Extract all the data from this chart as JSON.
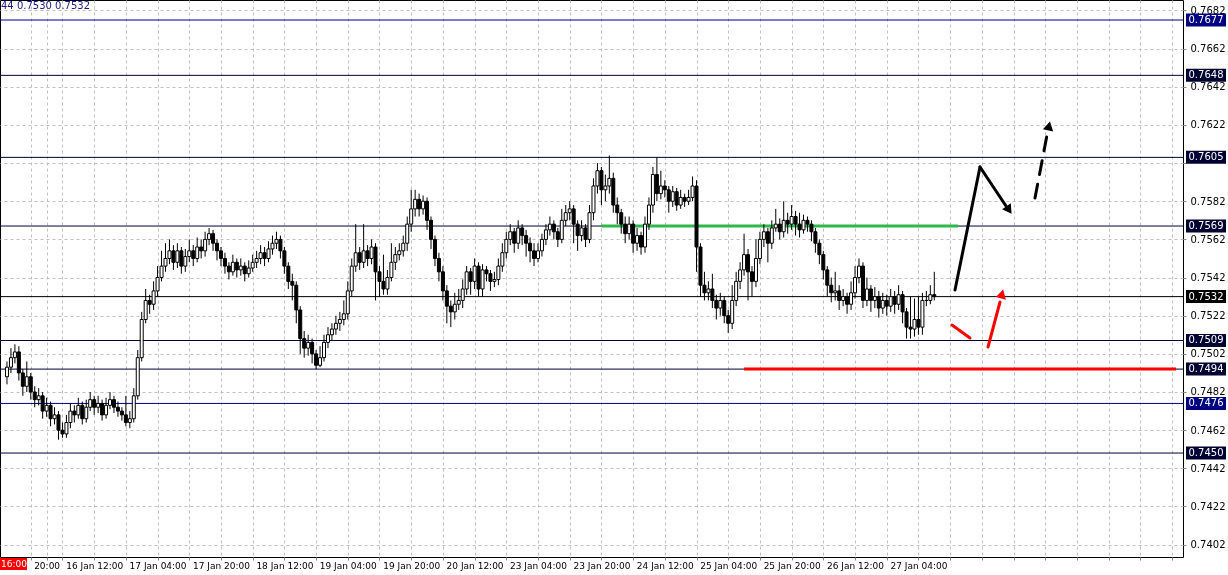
{
  "chart_data": {
    "type": "candlestick",
    "categories": [
      null,
      null,
      null,
      null,
      null,
      null,
      null,
      null,
      null,
      null,
      "20:00",
      null,
      null,
      null,
      null,
      null,
      null,
      null,
      null,
      null,
      null,
      null,
      "16 Jan 12:00",
      null,
      null,
      null,
      null,
      null,
      null,
      null,
      null,
      null,
      null,
      null,
      null,
      null,
      null,
      null,
      "17 Jan 04:00",
      null,
      null,
      null,
      null,
      null,
      null,
      null,
      null,
      null,
      null,
      null,
      null,
      null,
      null,
      null,
      "17 Jan 20:00",
      null,
      null,
      null,
      null,
      null,
      null,
      null,
      null,
      null,
      null,
      null,
      null,
      null,
      null,
      null,
      "18 Jan 12:00",
      null,
      null,
      null,
      null,
      null,
      null,
      null,
      null,
      null,
      null,
      null,
      null,
      null,
      null,
      null,
      "19 Jan 04:00",
      null,
      null,
      null,
      null,
      null,
      null,
      null,
      null,
      null,
      null,
      null,
      null,
      null,
      null,
      null,
      "19 Jan 20:00",
      null,
      null,
      null,
      null,
      null,
      null,
      null,
      null,
      null,
      null,
      null,
      null,
      null,
      null,
      null,
      "20 Jan 12:00",
      null,
      null,
      null,
      null,
      null,
      null,
      null,
      null,
      null,
      null,
      null,
      null,
      null,
      null,
      null,
      "23 Jan 04:00",
      null,
      null,
      null,
      null,
      null,
      null,
      null,
      null,
      null,
      null,
      null,
      null,
      null,
      null,
      null,
      "23 Jan 20:00",
      null,
      null,
      null,
      null,
      null,
      null,
      null,
      null,
      null,
      null,
      null,
      null,
      null,
      null,
      null,
      "24 Jan 12:00",
      null,
      null,
      null,
      null,
      null,
      null,
      null,
      null,
      null,
      null,
      null,
      null,
      null,
      null,
      null,
      "25 Jan 04:00",
      null,
      null,
      null,
      null,
      null,
      null,
      null,
      null,
      null,
      null,
      null,
      null,
      null,
      null,
      null,
      "25 Jan 20:00",
      null,
      null,
      null,
      null,
      null,
      null,
      null,
      null,
      null,
      null,
      null,
      null,
      null,
      null,
      null,
      "26 Jan 12:00",
      null,
      null,
      null,
      null,
      null,
      null,
      null,
      null,
      null,
      null,
      null,
      null,
      null,
      null,
      null,
      "27 Jan 04:00",
      null,
      null,
      null,
      null,
      null,
      null,
      null,
      null,
      null,
      null,
      null,
      null,
      null,
      null,
      null,
      null,
      null,
      null,
      null,
      null,
      null,
      null,
      null,
      null,
      null,
      null,
      null,
      null,
      null,
      null,
      null,
      null,
      null,
      null,
      null,
      null,
      null,
      null,
      null,
      null,
      null,
      null,
      null,
      null,
      null,
      null,
      null,
      null,
      null,
      null,
      null,
      null,
      null,
      null,
      null,
      null,
      null,
      null,
      null,
      null,
      null,
      null,
      null,
      null,
      null
    ],
    "color": "#000000",
    "ohlc": [
      [
        0.749,
        0.7498,
        0.7486,
        0.7495
      ],
      [
        0.7495,
        0.7505,
        0.7492,
        0.75
      ],
      [
        0.75,
        0.7507,
        0.7497,
        0.7503
      ],
      [
        0.7503,
        0.7506,
        0.7488,
        0.7492
      ],
      [
        0.7492,
        0.7494,
        0.748,
        0.7485
      ],
      [
        0.7485,
        0.7498,
        0.7482,
        0.749
      ],
      [
        0.749,
        0.7492,
        0.7478,
        0.7482
      ],
      [
        0.7482,
        0.7485,
        0.7474,
        0.7478
      ],
      [
        0.7478,
        0.7484,
        0.7475,
        0.748
      ],
      [
        0.748,
        0.7482,
        0.7468,
        0.7472
      ],
      [
        0.7472,
        0.7479,
        0.7469,
        0.7475
      ],
      [
        0.7475,
        0.7477,
        0.7464,
        0.7468
      ],
      [
        0.7468,
        0.7474,
        0.7465,
        0.747
      ],
      [
        0.747,
        0.7472,
        0.7457,
        0.7462
      ],
      [
        0.7462,
        0.7466,
        0.7458,
        0.746
      ],
      [
        0.746,
        0.747,
        0.7458,
        0.7466
      ],
      [
        0.7466,
        0.7476,
        0.7463,
        0.7472
      ],
      [
        0.7472,
        0.7475,
        0.7466,
        0.747
      ],
      [
        0.747,
        0.7479,
        0.7468,
        0.7475
      ],
      [
        0.7475,
        0.7477,
        0.7465,
        0.7468
      ],
      [
        0.7468,
        0.7478,
        0.7466,
        0.7474
      ],
      [
        0.7474,
        0.7482,
        0.7472,
        0.7478
      ],
      [
        0.7478,
        0.748,
        0.747,
        0.7474
      ],
      [
        0.7474,
        0.748,
        0.7471,
        0.7476
      ],
      [
        0.7476,
        0.7478,
        0.7467,
        0.747
      ],
      [
        0.747,
        0.7479,
        0.7468,
        0.7475
      ],
      [
        0.7475,
        0.7482,
        0.7473,
        0.7478
      ],
      [
        0.7478,
        0.748,
        0.7471,
        0.7474
      ],
      [
        0.7474,
        0.7477,
        0.7469,
        0.7472
      ],
      [
        0.7472,
        0.7474,
        0.7467,
        0.747
      ],
      [
        0.747,
        0.748,
        0.7464,
        0.7466
      ],
      [
        0.7466,
        0.7472,
        0.7463,
        0.7468
      ],
      [
        0.7468,
        0.7484,
        0.7466,
        0.748
      ],
      [
        0.748,
        0.7504,
        0.7478,
        0.75
      ],
      [
        0.75,
        0.7524,
        0.7498,
        0.752
      ],
      [
        0.752,
        0.7536,
        0.7518,
        0.753
      ],
      [
        0.753,
        0.7533,
        0.7523,
        0.7528
      ],
      [
        0.7528,
        0.754,
        0.7525,
        0.7535
      ],
      [
        0.7535,
        0.7548,
        0.7532,
        0.7542
      ],
      [
        0.7542,
        0.7556,
        0.754,
        0.7548
      ],
      [
        0.7548,
        0.756,
        0.7545,
        0.7552
      ],
      [
        0.7552,
        0.7562,
        0.7549,
        0.7556
      ],
      [
        0.7556,
        0.7559,
        0.7546,
        0.755
      ],
      [
        0.755,
        0.756,
        0.7547,
        0.7556
      ],
      [
        0.7556,
        0.7558,
        0.7544,
        0.7548
      ],
      [
        0.7548,
        0.7557,
        0.7545,
        0.7553
      ],
      [
        0.7553,
        0.7562,
        0.755,
        0.7556
      ],
      [
        0.7556,
        0.7559,
        0.7548,
        0.7552
      ],
      [
        0.7552,
        0.7563,
        0.755,
        0.7558
      ],
      [
        0.7558,
        0.7562,
        0.7552,
        0.7556
      ],
      [
        0.7556,
        0.7566,
        0.7553,
        0.7562
      ],
      [
        0.7562,
        0.7568,
        0.7559,
        0.7565
      ],
      [
        0.7565,
        0.7567,
        0.7556,
        0.756
      ],
      [
        0.756,
        0.7562,
        0.7551,
        0.7556
      ],
      [
        0.7556,
        0.7558,
        0.7548,
        0.7552
      ],
      [
        0.7552,
        0.7555,
        0.7544,
        0.7548
      ],
      [
        0.7548,
        0.755,
        0.7541,
        0.7545
      ],
      [
        0.7545,
        0.7554,
        0.7543,
        0.755
      ],
      [
        0.755,
        0.7552,
        0.7542,
        0.7546
      ],
      [
        0.7546,
        0.7552,
        0.7543,
        0.7548
      ],
      [
        0.7548,
        0.755,
        0.754,
        0.7544
      ],
      [
        0.7544,
        0.7551,
        0.7542,
        0.7547
      ],
      [
        0.7547,
        0.7554,
        0.7545,
        0.755
      ],
      [
        0.755,
        0.7556,
        0.7547,
        0.7552
      ],
      [
        0.7552,
        0.7559,
        0.7549,
        0.7555
      ],
      [
        0.7555,
        0.7558,
        0.7548,
        0.7552
      ],
      [
        0.7552,
        0.7561,
        0.755,
        0.7557
      ],
      [
        0.7557,
        0.7564,
        0.7554,
        0.756
      ],
      [
        0.756,
        0.7566,
        0.7557,
        0.7562
      ],
      [
        0.7562,
        0.7564,
        0.7552,
        0.7556
      ],
      [
        0.7556,
        0.7558,
        0.7544,
        0.7548
      ],
      [
        0.7548,
        0.755,
        0.7536,
        0.754
      ],
      [
        0.754,
        0.7544,
        0.753,
        0.7538
      ],
      [
        0.7538,
        0.754,
        0.7518,
        0.7525
      ],
      [
        0.7525,
        0.7527,
        0.7502,
        0.751
      ],
      [
        0.751,
        0.7514,
        0.75,
        0.7505
      ],
      [
        0.7505,
        0.7512,
        0.7501,
        0.7508
      ],
      [
        0.7508,
        0.751,
        0.7497,
        0.7502
      ],
      [
        0.7502,
        0.7504,
        0.7494,
        0.7496
      ],
      [
        0.7496,
        0.7506,
        0.7495,
        0.75
      ],
      [
        0.75,
        0.7512,
        0.7498,
        0.7508
      ],
      [
        0.7508,
        0.7516,
        0.7505,
        0.7512
      ],
      [
        0.7512,
        0.7518,
        0.7509,
        0.7515
      ],
      [
        0.7515,
        0.7522,
        0.7512,
        0.7518
      ],
      [
        0.7518,
        0.7524,
        0.7514,
        0.752
      ],
      [
        0.752,
        0.753,
        0.7517,
        0.7523
      ],
      [
        0.7523,
        0.754,
        0.752,
        0.7535
      ],
      [
        0.7535,
        0.7552,
        0.7532,
        0.7548
      ],
      [
        0.7548,
        0.757,
        0.7545,
        0.7555
      ],
      [
        0.7555,
        0.7558,
        0.7546,
        0.755
      ],
      [
        0.755,
        0.757,
        0.7547,
        0.7556
      ],
      [
        0.7556,
        0.7559,
        0.7548,
        0.7552
      ],
      [
        0.7552,
        0.7562,
        0.7549,
        0.7558
      ],
      [
        0.7558,
        0.756,
        0.753,
        0.7545
      ],
      [
        0.7545,
        0.7548,
        0.7532,
        0.754
      ],
      [
        0.754,
        0.7554,
        0.7533,
        0.7536
      ],
      [
        0.7536,
        0.7546,
        0.7533,
        0.7542
      ],
      [
        0.7542,
        0.756,
        0.754,
        0.755
      ],
      [
        0.755,
        0.7558,
        0.7546,
        0.7554
      ],
      [
        0.7554,
        0.756,
        0.7551,
        0.7556
      ],
      [
        0.7556,
        0.7564,
        0.7553,
        0.756
      ],
      [
        0.756,
        0.7574,
        0.7556,
        0.757
      ],
      [
        0.757,
        0.7588,
        0.7566,
        0.7578
      ],
      [
        0.7578,
        0.7588,
        0.7574,
        0.7583
      ],
      [
        0.7583,
        0.7586,
        0.7574,
        0.7578
      ],
      [
        0.7578,
        0.7585,
        0.7575,
        0.7582
      ],
      [
        0.7582,
        0.7584,
        0.7567,
        0.7572
      ],
      [
        0.7572,
        0.7574,
        0.7557,
        0.7562
      ],
      [
        0.7562,
        0.7564,
        0.7548,
        0.7552
      ],
      [
        0.7552,
        0.7555,
        0.754,
        0.7545
      ],
      [
        0.7545,
        0.7548,
        0.753,
        0.7535
      ],
      [
        0.7535,
        0.7538,
        0.7518,
        0.7527
      ],
      [
        0.7527,
        0.753,
        0.7516,
        0.7524
      ],
      [
        0.7524,
        0.7534,
        0.752,
        0.7528
      ],
      [
        0.7528,
        0.7536,
        0.7525,
        0.753
      ],
      [
        0.753,
        0.7541,
        0.7526,
        0.7536
      ],
      [
        0.7536,
        0.7548,
        0.7533,
        0.7545
      ],
      [
        0.7545,
        0.7547,
        0.7533,
        0.754
      ],
      [
        0.754,
        0.7552,
        0.7536,
        0.7548
      ],
      [
        0.7548,
        0.755,
        0.7532,
        0.7536
      ],
      [
        0.7536,
        0.7549,
        0.7532,
        0.7546
      ],
      [
        0.7546,
        0.7548,
        0.754,
        0.7544
      ],
      [
        0.7544,
        0.7546,
        0.7535,
        0.754
      ],
      [
        0.754,
        0.7545,
        0.7537,
        0.7541
      ],
      [
        0.7541,
        0.7552,
        0.7538,
        0.7548
      ],
      [
        0.7548,
        0.756,
        0.7545,
        0.7555
      ],
      [
        0.7555,
        0.7566,
        0.7552,
        0.7562
      ],
      [
        0.7562,
        0.757,
        0.7559,
        0.7566
      ],
      [
        0.7566,
        0.7568,
        0.7555,
        0.756
      ],
      [
        0.756,
        0.7572,
        0.7557,
        0.7568
      ],
      [
        0.7568,
        0.757,
        0.7559,
        0.7564
      ],
      [
        0.7564,
        0.7567,
        0.7553,
        0.756
      ],
      [
        0.756,
        0.7563,
        0.755,
        0.7556
      ],
      [
        0.7556,
        0.756,
        0.7548,
        0.7552
      ],
      [
        0.7552,
        0.756,
        0.755,
        0.7556
      ],
      [
        0.7556,
        0.7565,
        0.7553,
        0.7562
      ],
      [
        0.7562,
        0.757,
        0.7559,
        0.7567
      ],
      [
        0.7567,
        0.7574,
        0.7564,
        0.757
      ],
      [
        0.757,
        0.7572,
        0.7562,
        0.7566
      ],
      [
        0.7566,
        0.7568,
        0.7558,
        0.7562
      ],
      [
        0.7562,
        0.7578,
        0.756,
        0.7572
      ],
      [
        0.7572,
        0.758,
        0.7569,
        0.7576
      ],
      [
        0.7576,
        0.7582,
        0.7572,
        0.7578
      ],
      [
        0.7578,
        0.758,
        0.756,
        0.757
      ],
      [
        0.757,
        0.7572,
        0.7556,
        0.7564
      ],
      [
        0.7564,
        0.7572,
        0.7561,
        0.7568
      ],
      [
        0.7568,
        0.757,
        0.7558,
        0.7562
      ],
      [
        0.7562,
        0.758,
        0.756,
        0.7576
      ],
      [
        0.7576,
        0.7594,
        0.7572,
        0.759
      ],
      [
        0.759,
        0.7602,
        0.7586,
        0.7598
      ],
      [
        0.7598,
        0.76,
        0.758,
        0.7588
      ],
      [
        0.7588,
        0.7596,
        0.7582,
        0.759
      ],
      [
        0.759,
        0.7606,
        0.7586,
        0.7594
      ],
      [
        0.7594,
        0.7597,
        0.7576,
        0.758
      ],
      [
        0.758,
        0.7584,
        0.757,
        0.7576
      ],
      [
        0.7576,
        0.7578,
        0.7565,
        0.757
      ],
      [
        0.757,
        0.7574,
        0.756,
        0.7565
      ],
      [
        0.7565,
        0.7574,
        0.7562,
        0.757
      ],
      [
        0.757,
        0.7572,
        0.7555,
        0.756
      ],
      [
        0.756,
        0.7568,
        0.7556,
        0.7564
      ],
      [
        0.7564,
        0.7566,
        0.7554,
        0.7558
      ],
      [
        0.7558,
        0.7574,
        0.7555,
        0.757
      ],
      [
        0.757,
        0.7584,
        0.7567,
        0.758
      ],
      [
        0.758,
        0.76,
        0.7576,
        0.7596
      ],
      [
        0.7596,
        0.7605,
        0.7582,
        0.7586
      ],
      [
        0.7586,
        0.7598,
        0.7583,
        0.759
      ],
      [
        0.759,
        0.7593,
        0.7584,
        0.7588
      ],
      [
        0.7588,
        0.759,
        0.7576,
        0.7582
      ],
      [
        0.7582,
        0.759,
        0.7579,
        0.7587
      ],
      [
        0.7587,
        0.7589,
        0.7577,
        0.758
      ],
      [
        0.758,
        0.7588,
        0.7578,
        0.7584
      ],
      [
        0.7584,
        0.7586,
        0.7579,
        0.7582
      ],
      [
        0.7582,
        0.7588,
        0.758,
        0.7584
      ],
      [
        0.7584,
        0.7595,
        0.7582,
        0.759
      ],
      [
        0.759,
        0.7593,
        0.7545,
        0.7558
      ],
      [
        0.7558,
        0.756,
        0.7532,
        0.7538
      ],
      [
        0.7538,
        0.7545,
        0.753,
        0.7534
      ],
      [
        0.7534,
        0.754,
        0.753,
        0.7536
      ],
      [
        0.7536,
        0.7544,
        0.7526,
        0.753
      ],
      [
        0.753,
        0.7533,
        0.752,
        0.7526
      ],
      [
        0.7526,
        0.7534,
        0.7522,
        0.753
      ],
      [
        0.753,
        0.7532,
        0.7518,
        0.7522
      ],
      [
        0.7522,
        0.7525,
        0.7513,
        0.7518
      ],
      [
        0.7518,
        0.7538,
        0.7515,
        0.753
      ],
      [
        0.753,
        0.7545,
        0.7527,
        0.754
      ],
      [
        0.754,
        0.755,
        0.7536,
        0.7546
      ],
      [
        0.7546,
        0.7565,
        0.7543,
        0.7554
      ],
      [
        0.7554,
        0.7557,
        0.753,
        0.7545
      ],
      [
        0.7545,
        0.7548,
        0.7532,
        0.754
      ],
      [
        0.754,
        0.7562,
        0.7537,
        0.7552
      ],
      [
        0.7552,
        0.7566,
        0.7549,
        0.7562
      ],
      [
        0.7562,
        0.757,
        0.7558,
        0.7566
      ],
      [
        0.7566,
        0.7568,
        0.755,
        0.756
      ],
      [
        0.756,
        0.7572,
        0.7557,
        0.7568
      ],
      [
        0.7568,
        0.7578,
        0.7566,
        0.757
      ],
      [
        0.757,
        0.7573,
        0.7562,
        0.7566
      ],
      [
        0.7566,
        0.7582,
        0.7563,
        0.7572
      ],
      [
        0.7572,
        0.7576,
        0.7565,
        0.757
      ],
      [
        0.757,
        0.758,
        0.7567,
        0.7574
      ],
      [
        0.7574,
        0.7577,
        0.7564,
        0.757
      ],
      [
        0.757,
        0.7576,
        0.7563,
        0.7567
      ],
      [
        0.7567,
        0.7575,
        0.7565,
        0.7572
      ],
      [
        0.7572,
        0.7574,
        0.7566,
        0.757
      ],
      [
        0.757,
        0.7572,
        0.7561,
        0.7566
      ],
      [
        0.7566,
        0.7568,
        0.7555,
        0.756
      ],
      [
        0.756,
        0.7562,
        0.7549,
        0.7554
      ],
      [
        0.7554,
        0.7556,
        0.7541,
        0.7546
      ],
      [
        0.7546,
        0.7548,
        0.7532,
        0.7538
      ],
      [
        0.7538,
        0.7542,
        0.7529,
        0.7534
      ],
      [
        0.7534,
        0.7545,
        0.753,
        0.7535
      ],
      [
        0.7535,
        0.7538,
        0.7525,
        0.753
      ],
      [
        0.753,
        0.7536,
        0.7527,
        0.7532
      ],
      [
        0.7532,
        0.7534,
        0.7523,
        0.7528
      ],
      [
        0.7528,
        0.754,
        0.7525,
        0.7534
      ],
      [
        0.7534,
        0.7548,
        0.7531,
        0.7542
      ],
      [
        0.7542,
        0.7552,
        0.7539,
        0.7548
      ],
      [
        0.7548,
        0.755,
        0.7526,
        0.753
      ],
      [
        0.753,
        0.7542,
        0.7527,
        0.7536
      ],
      [
        0.7536,
        0.7538,
        0.7524,
        0.753
      ],
      [
        0.753,
        0.7537,
        0.7526,
        0.7532
      ],
      [
        0.7532,
        0.7535,
        0.7521,
        0.7526
      ],
      [
        0.7526,
        0.7534,
        0.7523,
        0.753
      ],
      [
        0.753,
        0.7533,
        0.7522,
        0.7527
      ],
      [
        0.7527,
        0.7536,
        0.7524,
        0.7532
      ],
      [
        0.7532,
        0.7535,
        0.7523,
        0.7528
      ],
      [
        0.7528,
        0.7538,
        0.7525,
        0.7533
      ],
      [
        0.7533,
        0.7535,
        0.7518,
        0.7524
      ],
      [
        0.7524,
        0.7526,
        0.751,
        0.7516
      ],
      [
        0.7516,
        0.7532,
        0.751,
        0.7515
      ],
      [
        0.7515,
        0.7531,
        0.7511,
        0.752
      ],
      [
        0.752,
        0.7532,
        0.7512,
        0.7516
      ],
      [
        0.7516,
        0.7534,
        0.7512,
        0.753
      ],
      [
        0.753,
        0.7535,
        0.7527,
        0.753
      ],
      [
        0.753,
        0.7538,
        0.7528,
        0.7533
      ],
      [
        0.7533,
        0.7545,
        0.753,
        0.7532
      ],
      null,
      null,
      null,
      null,
      null,
      null,
      null,
      null,
      null,
      null,
      null,
      null,
      null,
      null,
      null,
      null,
      null,
      null,
      null,
      null,
      null,
      null,
      null,
      null,
      null,
      null,
      null,
      null,
      null,
      null,
      null,
      null,
      null,
      null,
      null,
      null,
      null,
      null,
      null,
      null,
      null,
      null,
      null,
      null,
      null,
      null,
      null,
      null,
      null,
      null,
      null,
      null,
      null,
      null,
      null,
      null,
      null,
      null,
      null,
      null,
      null
    ],
    "series": [
      {
        "type": "line",
        "color": "#2eb84b",
        "values": [
          null,
          null,
          null,
          null,
          null,
          null,
          null,
          null,
          null,
          null,
          null,
          null,
          null,
          null,
          null,
          null,
          null,
          null,
          null,
          null,
          null,
          null,
          null,
          null,
          null,
          null,
          null,
          null,
          null,
          null,
          null,
          null,
          null,
          null,
          null,
          null,
          null,
          null,
          null,
          null,
          null,
          null,
          null,
          null,
          null,
          null,
          null,
          null,
          null,
          null,
          null,
          null,
          null,
          null,
          null,
          null,
          null,
          null,
          null,
          null,
          null,
          null,
          null,
          null,
          null,
          null,
          null,
          null,
          null,
          null,
          null,
          null,
          null,
          null,
          null,
          null,
          null,
          null,
          null,
          null,
          null,
          null,
          null,
          null,
          null,
          null,
          null,
          null,
          null,
          null,
          null,
          null,
          null,
          null,
          null,
          null,
          null,
          null,
          null,
          null,
          null,
          null,
          null,
          null,
          null,
          null,
          null,
          null,
          null,
          null,
          null,
          null,
          null,
          null,
          null,
          null,
          null,
          null,
          null,
          null,
          null,
          null,
          null,
          null,
          null,
          null,
          null,
          null,
          null,
          null,
          null,
          null,
          null,
          null,
          null,
          null,
          null,
          null,
          null,
          null,
          null,
          null,
          null,
          null,
          null,
          null,
          null,
          null,
          null,
          null,
          0.7569,
          0.7569,
          0.7569,
          0.7569,
          0.7569,
          0.7569,
          0.7569,
          0.7569,
          0.7569,
          0.7569,
          0.7569,
          0.7569,
          0.7569,
          0.7569,
          0.7569,
          0.7569,
          0.7569,
          0.7569,
          0.7569,
          0.7569,
          0.7569,
          0.7569,
          0.7569,
          0.7569,
          0.7569,
          0.7569,
          0.7569,
          0.7569,
          0.7569,
          0.7569,
          0.7569,
          0.7569,
          0.7569,
          0.7569,
          0.7569,
          0.7569,
          0.7569,
          0.7569,
          0.7569,
          0.7569,
          0.7569,
          0.7569,
          0.7569,
          0.7569,
          0.7569,
          0.7569,
          0.7569,
          0.7569,
          0.7569,
          0.7569,
          0.7569,
          0.7569,
          0.7569,
          0.7569,
          0.7569,
          0.7569,
          0.7569,
          0.7569,
          0.7569,
          0.7569,
          0.7569,
          0.7569,
          0.7569,
          0.7569,
          0.7569,
          0.7569,
          0.7569,
          0.7569,
          0.7569,
          0.7569,
          0.7569,
          0.7569,
          0.7569,
          0.7569,
          0.7569,
          0.7569,
          0.7569,
          0.7569,
          0.7569,
          0.7569,
          0.7569,
          0.7569,
          0.7569,
          0.7569,
          0.7569,
          0.7569,
          0.7569,
          0.7569,
          0.7569,
          0.7569,
          0.7569,
          null,
          null,
          null,
          null,
          null,
          null,
          null,
          null,
          null,
          null,
          null,
          null,
          null,
          null,
          null,
          null,
          null,
          null,
          null,
          null,
          null,
          null,
          null,
          null,
          null,
          null,
          null,
          null,
          null,
          null,
          null,
          null,
          null,
          null,
          null,
          null,
          null,
          null,
          null,
          null,
          null,
          null,
          null,
          null,
          null,
          null,
          null,
          null,
          null,
          null,
          null,
          null,
          null,
          null,
          null
        ]
      },
      {
        "type": "line",
        "color": "#ff0000",
        "values": [
          null,
          null,
          null,
          null,
          null,
          null,
          null,
          null,
          null,
          null,
          null,
          null,
          null,
          null,
          null,
          null,
          null,
          null,
          null,
          null,
          null,
          null,
          null,
          null,
          null,
          null,
          null,
          null,
          null,
          null,
          null,
          null,
          null,
          null,
          null,
          null,
          null,
          null,
          null,
          null,
          null,
          null,
          null,
          null,
          null,
          null,
          null,
          null,
          null,
          null,
          null,
          null,
          null,
          null,
          null,
          null,
          null,
          null,
          null,
          null,
          null,
          null,
          null,
          null,
          null,
          null,
          null,
          null,
          null,
          null,
          null,
          null,
          null,
          null,
          null,
          null,
          null,
          null,
          null,
          null,
          null,
          null,
          null,
          null,
          null,
          null,
          null,
          null,
          null,
          null,
          null,
          null,
          null,
          null,
          null,
          null,
          null,
          null,
          null,
          null,
          null,
          null,
          null,
          null,
          null,
          null,
          null,
          null,
          null,
          null,
          null,
          null,
          null,
          null,
          null,
          null,
          null,
          null,
          null,
          null,
          null,
          null,
          null,
          null,
          null,
          null,
          null,
          null,
          null,
          null,
          null,
          null,
          null,
          null,
          null,
          null,
          null,
          null,
          null,
          null,
          null,
          null,
          null,
          null,
          null,
          null,
          null,
          null,
          null,
          null,
          null,
          null,
          null,
          null,
          null,
          null,
          null,
          null,
          null,
          null,
          null,
          null,
          null,
          null,
          null,
          null,
          null,
          null,
          null,
          null,
          null,
          null,
          null,
          null,
          null,
          null,
          null,
          null,
          null,
          null,
          null,
          null,
          null,
          null,
          null,
          null,
          0.7494,
          0.7494,
          0.7494,
          0.7494,
          0.7494,
          0.7494,
          0.7494,
          0.7494,
          0.7494,
          0.7494,
          0.7494,
          0.7494,
          0.7494,
          0.7494,
          0.7494,
          0.7494,
          0.7494,
          0.7494,
          0.7494,
          0.7494,
          0.7494,
          0.7494,
          0.7494,
          0.7494,
          0.7494,
          0.7494,
          0.7494,
          0.7494,
          0.7494,
          0.7494,
          0.7494,
          0.7494,
          0.7494,
          0.7494,
          0.7494,
          0.7494,
          0.7494,
          0.7494,
          0.7494,
          0.7494,
          0.7494,
          0.7494,
          0.7494,
          0.7494,
          0.7494,
          0.7494,
          0.7494,
          0.7494,
          0.7494,
          0.7494,
          0.7494,
          0.7494,
          0.7494,
          0.7494,
          0.7494,
          0.7494,
          0.7494,
          0.7494,
          0.7494,
          0.7494,
          0.7494,
          0.7494,
          0.7494,
          0.7494,
          0.7494,
          0.7494,
          0.7494,
          0.7494,
          0.7494,
          0.7494,
          0.7494,
          0.7494,
          0.7494,
          0.7494,
          0.7494,
          0.7494,
          0.7494,
          0.7494,
          0.7494,
          0.7494,
          0.7494,
          0.7494,
          0.7494,
          0.7494,
          0.7494,
          0.7494,
          0.7494,
          0.7494,
          0.7494,
          0.7494,
          0.7494,
          0.7494,
          0.7494,
          0.7494,
          0.7494,
          0.7494,
          0.7494,
          0.7494,
          0.7494,
          0.7494,
          0.7494,
          0.7494,
          0.7494,
          0.7494,
          0.7494,
          0.7494,
          0.7494,
          0.7494,
          0.7494,
          0.7494
        ]
      }
    ],
    "ylim": [
      0.73955,
      0.76875
    ],
    "yticks": [
      0.7402,
      0.7422,
      0.7442,
      0.7462,
      0.7482,
      0.7502,
      0.7522,
      0.7542,
      0.7562,
      0.7582,
      {
        "value": 0.7602,
        "label": null
      },
      0.7622,
      0.7642,
      0.7662,
      0.7682
    ],
    "ref_lines": [
      {
        "axis": "y",
        "value": 0.7677,
        "label": "0.7677",
        "color": "#000080"
      },
      {
        "axis": "y",
        "value": 0.7648,
        "label": "0.7648",
        "color": "#000033"
      },
      {
        "axis": "y",
        "value": 0.7605,
        "label": "0.7605",
        "color": "#000033"
      },
      {
        "axis": "y",
        "value": 0.7569,
        "label": "0.7569",
        "color": "#000033"
      },
      {
        "axis": "y",
        "value": 0.7532,
        "label": "0.7532",
        "color": "#000000"
      },
      {
        "axis": "y",
        "value": 0.7509,
        "label": "0.7509",
        "color": "#000033"
      },
      {
        "axis": "y",
        "value": 0.7494,
        "label": "0.7494",
        "color": "#000033"
      },
      {
        "axis": "y",
        "value": 0.7476,
        "label": "0.7476",
        "color": "#000080"
      },
      {
        "axis": "y",
        "value": 0.745,
        "label": "0.7450",
        "color": "#000033"
      }
    ],
    "annotations": [
      "44 0.7530 0.7532",
      "16:00"
    ],
    "grid": true
  }
}
